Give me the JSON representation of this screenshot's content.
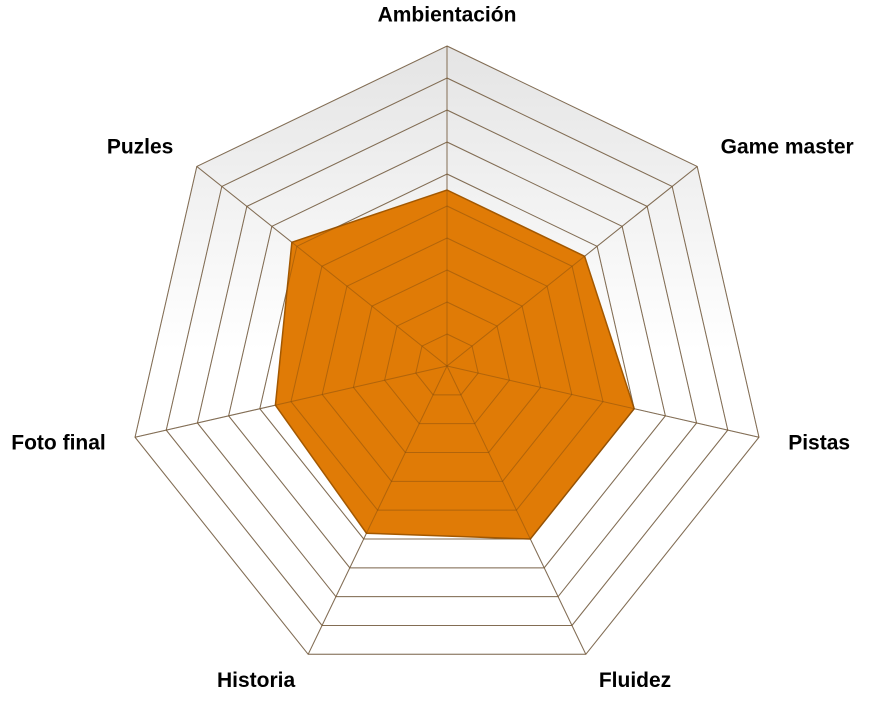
{
  "chart_data": {
    "type": "radar",
    "categories": [
      "Ambientación",
      "Game master",
      "Pistas",
      "Fluidez",
      "Historia",
      "Foto final",
      "Puzles"
    ],
    "values": [
      5.5,
      5.5,
      6,
      6,
      5.8,
      5.5,
      6.2
    ],
    "color": "#e07b06",
    "rlim": [
      0,
      10
    ],
    "rticks": [
      1,
      2,
      3,
      4,
      5,
      6,
      7,
      8,
      9,
      10
    ],
    "grid": true
  }
}
